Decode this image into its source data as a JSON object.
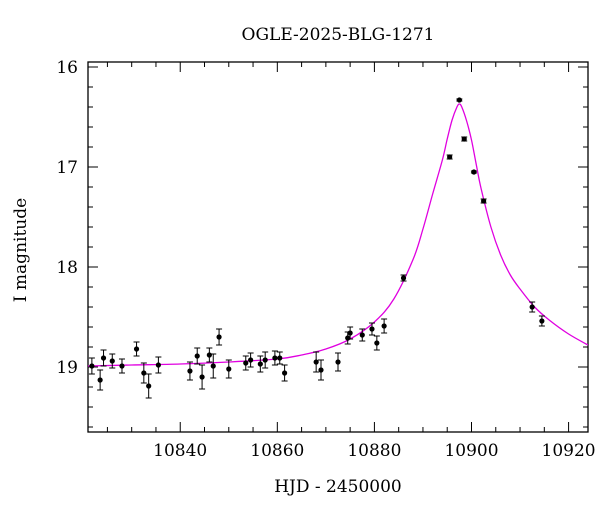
{
  "chart_data": {
    "type": "scatter",
    "title": "OGLE-2025-BLG-1271",
    "xlabel": "HJD - 2450000",
    "ylabel": "I magnitude",
    "xlim": [
      10821,
      10924
    ],
    "ylim": [
      19.65,
      15.95
    ],
    "y_inverted": true,
    "grid": false,
    "x_ticks": [
      10840,
      10860,
      10880,
      10900,
      10920
    ],
    "x_tick_labels": [
      "10840",
      "10860",
      "10880",
      "10900",
      "10920"
    ],
    "y_ticks": [
      16,
      17,
      18,
      19
    ],
    "y_tick_labels": [
      "16",
      "17",
      "18",
      "19"
    ],
    "colors": {
      "data": "#000000",
      "model": "#e000e0"
    },
    "series": [
      {
        "kind": "points",
        "color": "#000000",
        "x": [
          10821.8,
          10823.5,
          10824.2,
          10826.0,
          10828.0,
          10831.0,
          10832.5,
          10833.5,
          10835.5,
          10842.0,
          10843.5,
          10844.5,
          10846.0,
          10846.8,
          10848.0,
          10850.0,
          10853.5,
          10854.5,
          10856.5,
          10857.5,
          10859.5,
          10860.5,
          10861.5,
          10868.0,
          10869.0,
          10872.5,
          10874.5,
          10875.0,
          10877.5,
          10879.5,
          10880.5,
          10882.0,
          10886.0,
          10895.5,
          10897.5,
          10898.5,
          10900.5,
          10902.5,
          10912.5,
          10914.5
        ],
        "y": [
          18.99,
          19.13,
          18.91,
          18.94,
          18.99,
          18.82,
          19.06,
          19.19,
          18.98,
          19.04,
          18.89,
          19.1,
          18.88,
          18.99,
          18.7,
          19.02,
          18.96,
          18.93,
          18.97,
          18.93,
          18.91,
          18.91,
          19.06,
          18.95,
          19.03,
          18.95,
          18.71,
          18.66,
          18.68,
          18.62,
          18.76,
          18.59,
          18.11,
          16.9,
          16.33,
          16.72,
          17.05,
          17.34,
          18.4,
          18.54
        ],
        "yerr": [
          0.08,
          0.1,
          0.08,
          0.07,
          0.07,
          0.07,
          0.1,
          0.12,
          0.08,
          0.09,
          0.08,
          0.12,
          0.07,
          0.12,
          0.08,
          0.09,
          0.07,
          0.07,
          0.08,
          0.08,
          0.07,
          0.06,
          0.08,
          0.1,
          0.1,
          0.09,
          0.06,
          0.06,
          0.06,
          0.06,
          0.07,
          0.07,
          0.03,
          0.02,
          0.01,
          0.02,
          0.01,
          0.02,
          0.05,
          0.05
        ]
      },
      {
        "kind": "model",
        "color": "#e000e0",
        "x": [
          10821,
          10830,
          10840,
          10850,
          10860,
          10865,
          10870,
          10875,
          10880,
          10884,
          10888,
          10890,
          10892,
          10894,
          10895,
          10896,
          10897,
          10897.5,
          10898,
          10899,
          10900,
          10901,
          10902,
          10904,
          10906,
          10908,
          10910,
          10913,
          10916,
          10920,
          10924
        ],
        "y": [
          18.99,
          18.98,
          18.97,
          18.95,
          18.92,
          18.88,
          18.82,
          18.72,
          18.55,
          18.32,
          17.92,
          17.62,
          17.27,
          16.93,
          16.72,
          16.53,
          16.4,
          16.37,
          16.4,
          16.54,
          16.73,
          16.98,
          17.22,
          17.6,
          17.88,
          18.08,
          18.22,
          18.4,
          18.53,
          18.67,
          18.78
        ]
      }
    ]
  }
}
